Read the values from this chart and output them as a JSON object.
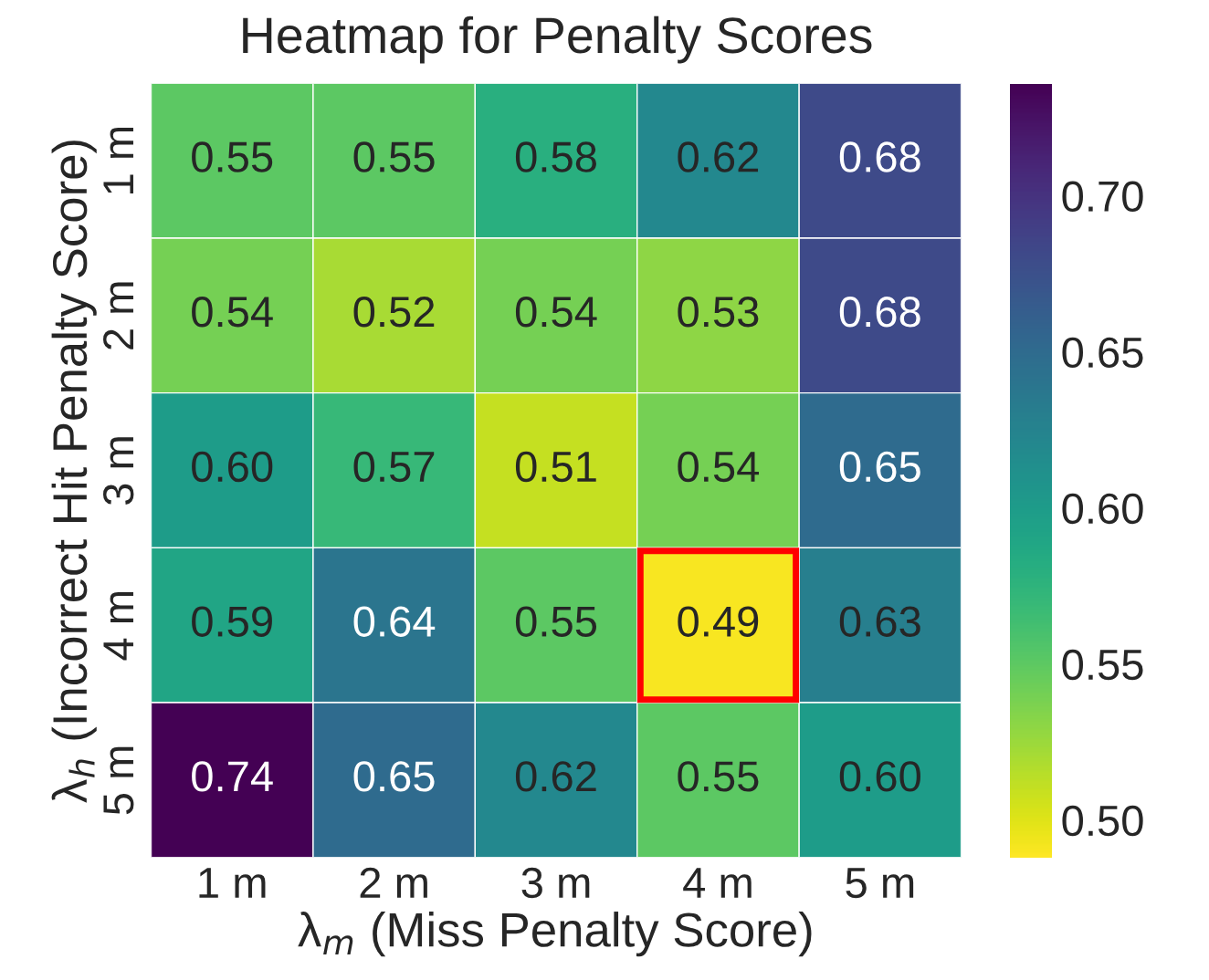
{
  "chart_data": {
    "type": "heatmap",
    "title": "Heatmap for Penalty Scores",
    "xlabel": "λ$_{m}$ (Miss Penalty Score)",
    "ylabel": "λ$_{h}$ (Incorrect Hit Penalty Score)",
    "categories": [
      "1 m",
      "2 m",
      "3 m",
      "4 m",
      "5 m"
    ],
    "y_categories": [
      "1 m",
      "2 m",
      "3 m",
      "4 m",
      "5 m"
    ],
    "cells": [
      [
        0.55,
        0.55,
        0.58,
        0.62,
        0.68
      ],
      [
        0.54,
        0.52,
        0.54,
        0.53,
        0.68
      ],
      [
        0.6,
        0.57,
        0.51,
        0.54,
        0.65
      ],
      [
        0.59,
        0.64,
        0.55,
        0.49,
        0.63
      ],
      [
        0.74,
        0.65,
        0.62,
        0.55,
        0.6
      ]
    ],
    "cell_labels": [
      [
        "0.55",
        "0.55",
        "0.58",
        "0.62",
        "0.68"
      ],
      [
        "0.54",
        "0.52",
        "0.54",
        "0.53",
        "0.68"
      ],
      [
        "0.60",
        "0.57",
        "0.51",
        "0.54",
        "0.65"
      ],
      [
        "0.59",
        "0.64",
        "0.55",
        "0.49",
        "0.63"
      ],
      [
        "0.74",
        "0.65",
        "0.62",
        "0.55",
        "0.60"
      ]
    ],
    "clim": [
      0.488,
      0.736
    ],
    "cticks": [
      {
        "value": 0.5,
        "label": "0.50"
      },
      {
        "value": 0.55,
        "label": "0.55"
      },
      {
        "value": 0.6,
        "label": "0.60"
      },
      {
        "value": 0.65,
        "label": "0.65"
      },
      {
        "value": 0.7,
        "label": "0.70"
      }
    ]
  }
}
